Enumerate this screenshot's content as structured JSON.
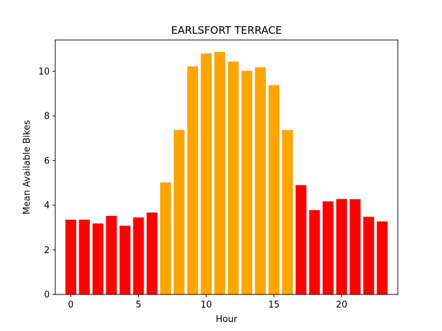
{
  "chart_data": {
    "type": "bar",
    "title": "EARLSFORT TERRACE",
    "xlabel": "Hour",
    "ylabel": "Mean Available Bikes",
    "x": [
      0,
      1,
      2,
      3,
      4,
      5,
      6,
      7,
      8,
      9,
      10,
      11,
      12,
      13,
      14,
      15,
      16,
      17,
      18,
      19,
      20,
      21,
      22,
      23
    ],
    "values": [
      3.35,
      3.35,
      3.18,
      3.52,
      3.08,
      3.45,
      3.67,
      5.02,
      7.37,
      10.22,
      10.8,
      10.87,
      10.43,
      10.02,
      10.18,
      9.38,
      7.37,
      4.9,
      3.78,
      4.17,
      4.28,
      4.27,
      3.48,
      3.27
    ],
    "bar_colors": [
      "#ff0000",
      "#ff0000",
      "#ff0000",
      "#ff0000",
      "#ff0000",
      "#ff0000",
      "#ff0000",
      "#ffa500",
      "#ffa500",
      "#ffa500",
      "#ffa500",
      "#ffa500",
      "#ffa500",
      "#ffa500",
      "#ffa500",
      "#ffa500",
      "#ffa500",
      "#ff0000",
      "#ff0000",
      "#ff0000",
      "#ff0000",
      "#ff0000",
      "#ff0000",
      "#ff0000"
    ],
    "xlim": [
      -1.15,
      24.15
    ],
    "ylim": [
      0,
      11.4
    ],
    "xticks": [
      0,
      5,
      10,
      15,
      20
    ],
    "yticks": [
      0,
      2,
      4,
      6,
      8,
      10
    ],
    "grid": false,
    "legend": "none"
  }
}
